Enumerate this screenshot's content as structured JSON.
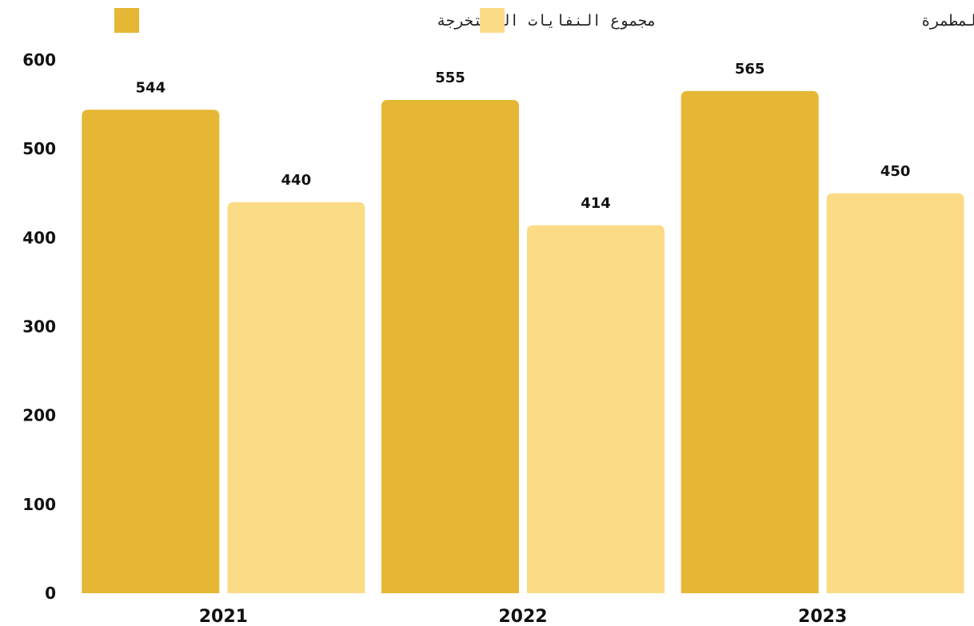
{
  "chart_data": {
    "type": "bar",
    "categories": [
      "2021",
      "2022",
      "2023"
    ],
    "series": [
      {
        "name": "مجموع النفايات المستخرجة",
        "values": [
          544,
          555,
          565
        ],
        "color": "#E5B735"
      },
      {
        "name": "مجموع النفايات المستخرجة من المطمرة",
        "values": [
          440,
          414,
          450
        ],
        "color": "#FCDB86"
      }
    ],
    "yticks": [
      0,
      100,
      200,
      300,
      400,
      500,
      600
    ],
    "ylim": [
      0,
      600
    ],
    "title": "",
    "xlabel": "",
    "ylabel": "",
    "grid": false,
    "legend_position": "top"
  }
}
